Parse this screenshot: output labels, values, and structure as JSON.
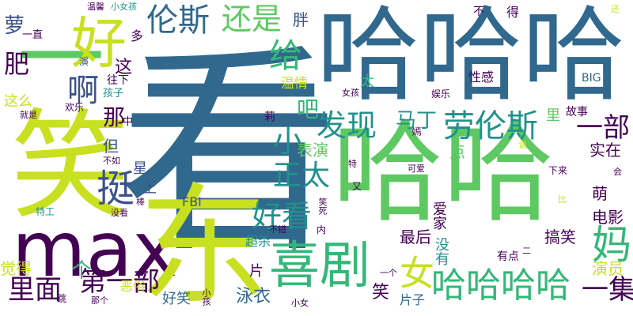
{
  "palette": {
    "dark_purple": "#440154",
    "indigo": "#3b528b",
    "blue": "#31688e",
    "teal": "#21918c",
    "green": "#35b779",
    "light_green": "#5ec962",
    "lime": "#c8e020"
  },
  "words": [
    {
      "text": "看"
    },
    {
      "text": "哈哈哈"
    },
    {
      "text": "哈哈"
    },
    {
      "text": "笑"
    },
    {
      "text": "max"
    },
    {
      "text": "东"
    },
    {
      "text": "一"
    },
    {
      "text": "好"
    },
    {
      "text": "伦斯"
    },
    {
      "text": "还是"
    },
    {
      "text": "喜剧"
    },
    {
      "text": "哈哈哈哈"
    },
    {
      "text": "劳伦斯"
    },
    {
      "text": "发现"
    },
    {
      "text": "好看"
    },
    {
      "text": "正太"
    },
    {
      "text": "小"
    },
    {
      "text": "挺"
    },
    {
      "text": "肥"
    },
    {
      "text": "啊"
    },
    {
      "text": "妈"
    },
    {
      "text": "给"
    },
    {
      "text": "女"
    },
    {
      "text": "一集"
    },
    {
      "text": "一部"
    },
    {
      "text": "第一部"
    },
    {
      "text": "里面"
    },
    {
      "text": "觉得"
    },
    {
      "text": "那"
    },
    {
      "text": "吧"
    },
    {
      "text": "马丁"
    },
    {
      "text": "萝"
    },
    {
      "text": "这"
    },
    {
      "text": "胖"
    },
    {
      "text": "个"
    },
    {
      "text": "笑"
    },
    {
      "text": "泳衣"
    },
    {
      "text": "好笑"
    },
    {
      "text": "搞笑"
    },
    {
      "text": "最后"
    },
    {
      "text": "演员"
    },
    {
      "text": "表演"
    },
    {
      "text": "电影"
    },
    {
      "text": "实在"
    },
    {
      "text": "萌"
    },
    {
      "text": "但"
    },
    {
      "text": "上"
    },
    {
      "text": "星"
    },
    {
      "text": "FBI"
    },
    {
      "text": "爱家"
    },
    {
      "text": "没有"
    },
    {
      "text": "点"
    },
    {
      "text": "超杀"
    },
    {
      "text": "有点"
    },
    {
      "text": "片子"
    },
    {
      "text": "片"
    },
    {
      "text": "恶俗"
    },
    {
      "text": "这么"
    },
    {
      "text": "温情"
    },
    {
      "text": "太"
    },
    {
      "text": "故事"
    },
    {
      "text": "BIG"
    },
    {
      "text": "性感"
    },
    {
      "text": "里"
    },
    {
      "text": "多"
    },
    {
      "text": "往下"
    },
    {
      "text": "孩子"
    },
    {
      "text": "不"
    },
    {
      "text": "得"
    },
    {
      "text": "还"
    },
    {
      "text": "温馨"
    },
    {
      "text": "小女孩"
    },
    {
      "text": "一直"
    },
    {
      "text": "演"
    },
    {
      "text": "欢乐"
    },
    {
      "text": "就是"
    },
    {
      "text": "女孩"
    },
    {
      "text": "娱乐"
    },
    {
      "text": "中"
    },
    {
      "text": "不如"
    },
    {
      "text": "特工"
    },
    {
      "text": "没看"
    },
    {
      "text": "棒"
    },
    {
      "text": "可爱"
    },
    {
      "text": "下来"
    },
    {
      "text": "会"
    },
    {
      "text": "又"
    },
    {
      "text": "特"
    },
    {
      "text": "说"
    },
    {
      "text": "比"
    },
    {
      "text": "嫣"
    },
    {
      "text": "莉"
    },
    {
      "text": "不错"
    },
    {
      "text": "内"
    },
    {
      "text": "笑死"
    },
    {
      "text": "那个"
    },
    {
      "text": "跳"
    },
    {
      "text": "小孩"
    },
    {
      "text": "一个"
    },
    {
      "text": "小女"
    },
    {
      "text": "二"
    }
  ]
}
